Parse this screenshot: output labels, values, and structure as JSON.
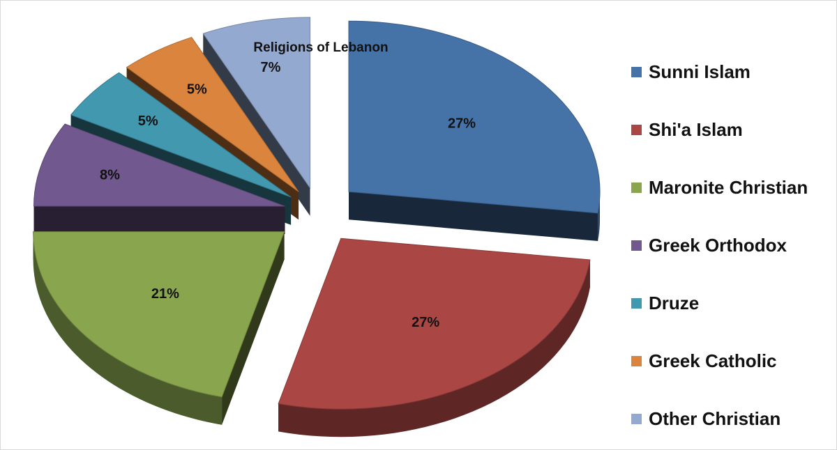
{
  "chart_data": {
    "type": "pie",
    "title": "Religions of Lebanon",
    "legend_position": "right",
    "slices": [
      {
        "label": "Sunni Islam",
        "value": 27,
        "value_label": "27%",
        "color": "#4572A7"
      },
      {
        "label": "Shi'a Islam",
        "value": 27,
        "value_label": "27%",
        "color": "#AA4643"
      },
      {
        "label": "Maronite Christian",
        "value": 21,
        "value_label": "21%",
        "color": "#89A54E"
      },
      {
        "label": "Greek Orthodox",
        "value": 8,
        "value_label": "8%",
        "color": "#71588F"
      },
      {
        "label": "Druze",
        "value": 5,
        "value_label": "5%",
        "color": "#4198AF"
      },
      {
        "label": "Greek Catholic",
        "value": 5,
        "value_label": "5%",
        "color": "#DB843D"
      },
      {
        "label": "Other Christian",
        "value": 7,
        "value_label": "7%",
        "color": "#93A9CF"
      }
    ]
  }
}
